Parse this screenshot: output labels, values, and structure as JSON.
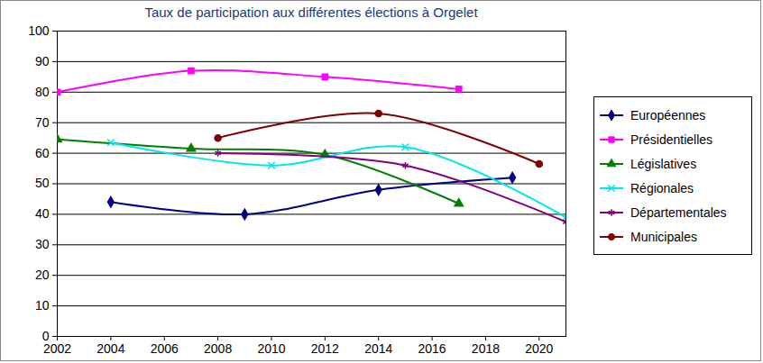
{
  "chart_data": {
    "type": "line",
    "title": "Taux de participation aux différentes élections à Orgelet",
    "xlim": [
      2002,
      2021
    ],
    "xticks": [
      2002,
      2004,
      2006,
      2008,
      2010,
      2012,
      2014,
      2016,
      2018,
      2020
    ],
    "ylim": [
      0,
      100
    ],
    "yticks": [
      0,
      10,
      20,
      30,
      40,
      50,
      60,
      70,
      80,
      90,
      100
    ],
    "grid": true,
    "legend": "right",
    "series": [
      {
        "name": "Européennes",
        "color": "#000080",
        "marker": "diamond",
        "x": [
          2004,
          2009,
          2014,
          2019
        ],
        "values": [
          44,
          40,
          48,
          52
        ]
      },
      {
        "name": "Présidentielles",
        "color": "#ff00ff",
        "marker": "square",
        "x": [
          2002,
          2007,
          2012,
          2017
        ],
        "values": [
          80,
          87,
          85,
          81
        ]
      },
      {
        "name": "Législatives",
        "color": "#008000",
        "marker": "triangle",
        "x": [
          2002,
          2007,
          2012,
          2017
        ],
        "values": [
          64.5,
          61.5,
          59.5,
          43.5
        ]
      },
      {
        "name": "Régionales",
        "color": "#00e5ee",
        "marker": "times",
        "x": [
          2004,
          2010,
          2015,
          2021
        ],
        "values": [
          63.5,
          56,
          62,
          39
        ]
      },
      {
        "name": "Départementales",
        "color": "#800080",
        "marker": "asterisk",
        "x": [
          2008,
          2015,
          2021
        ],
        "values": [
          60,
          56,
          37.5
        ]
      },
      {
        "name": "Municipales",
        "color": "#800000",
        "marker": "circle",
        "x": [
          2008,
          2014,
          2020
        ],
        "values": [
          65,
          73,
          56.5
        ]
      }
    ]
  }
}
